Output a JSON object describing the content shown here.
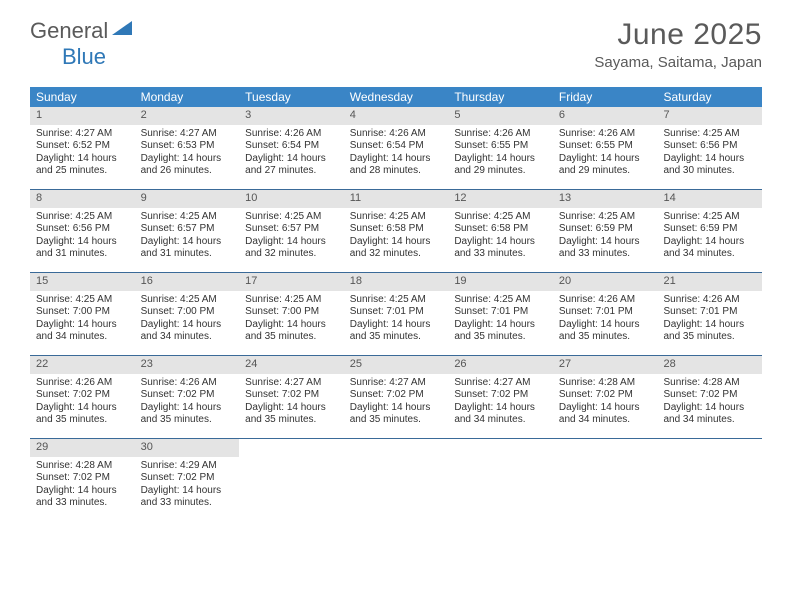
{
  "brand": {
    "part1": "General",
    "part2": "Blue"
  },
  "title": "June 2025",
  "location": "Sayama, Saitama, Japan",
  "colors": {
    "header_bg": "#3a85c6",
    "daynum_bg": "#e4e4e4",
    "rule": "#3a6a98",
    "brand_blue": "#2f78b7",
    "text": "#333333",
    "muted": "#5a5a5a"
  },
  "day_names": [
    "Sunday",
    "Monday",
    "Tuesday",
    "Wednesday",
    "Thursday",
    "Friday",
    "Saturday"
  ],
  "weeks": [
    [
      {
        "n": "1",
        "sunrise": "4:27 AM",
        "sunset": "6:52 PM",
        "daylight": "14 hours and 25 minutes."
      },
      {
        "n": "2",
        "sunrise": "4:27 AM",
        "sunset": "6:53 PM",
        "daylight": "14 hours and 26 minutes."
      },
      {
        "n": "3",
        "sunrise": "4:26 AM",
        "sunset": "6:54 PM",
        "daylight": "14 hours and 27 minutes."
      },
      {
        "n": "4",
        "sunrise": "4:26 AM",
        "sunset": "6:54 PM",
        "daylight": "14 hours and 28 minutes."
      },
      {
        "n": "5",
        "sunrise": "4:26 AM",
        "sunset": "6:55 PM",
        "daylight": "14 hours and 29 minutes."
      },
      {
        "n": "6",
        "sunrise": "4:26 AM",
        "sunset": "6:55 PM",
        "daylight": "14 hours and 29 minutes."
      },
      {
        "n": "7",
        "sunrise": "4:25 AM",
        "sunset": "6:56 PM",
        "daylight": "14 hours and 30 minutes."
      }
    ],
    [
      {
        "n": "8",
        "sunrise": "4:25 AM",
        "sunset": "6:56 PM",
        "daylight": "14 hours and 31 minutes."
      },
      {
        "n": "9",
        "sunrise": "4:25 AM",
        "sunset": "6:57 PM",
        "daylight": "14 hours and 31 minutes."
      },
      {
        "n": "10",
        "sunrise": "4:25 AM",
        "sunset": "6:57 PM",
        "daylight": "14 hours and 32 minutes."
      },
      {
        "n": "11",
        "sunrise": "4:25 AM",
        "sunset": "6:58 PM",
        "daylight": "14 hours and 32 minutes."
      },
      {
        "n": "12",
        "sunrise": "4:25 AM",
        "sunset": "6:58 PM",
        "daylight": "14 hours and 33 minutes."
      },
      {
        "n": "13",
        "sunrise": "4:25 AM",
        "sunset": "6:59 PM",
        "daylight": "14 hours and 33 minutes."
      },
      {
        "n": "14",
        "sunrise": "4:25 AM",
        "sunset": "6:59 PM",
        "daylight": "14 hours and 34 minutes."
      }
    ],
    [
      {
        "n": "15",
        "sunrise": "4:25 AM",
        "sunset": "7:00 PM",
        "daylight": "14 hours and 34 minutes."
      },
      {
        "n": "16",
        "sunrise": "4:25 AM",
        "sunset": "7:00 PM",
        "daylight": "14 hours and 34 minutes."
      },
      {
        "n": "17",
        "sunrise": "4:25 AM",
        "sunset": "7:00 PM",
        "daylight": "14 hours and 35 minutes."
      },
      {
        "n": "18",
        "sunrise": "4:25 AM",
        "sunset": "7:01 PM",
        "daylight": "14 hours and 35 minutes."
      },
      {
        "n": "19",
        "sunrise": "4:25 AM",
        "sunset": "7:01 PM",
        "daylight": "14 hours and 35 minutes."
      },
      {
        "n": "20",
        "sunrise": "4:26 AM",
        "sunset": "7:01 PM",
        "daylight": "14 hours and 35 minutes."
      },
      {
        "n": "21",
        "sunrise": "4:26 AM",
        "sunset": "7:01 PM",
        "daylight": "14 hours and 35 minutes."
      }
    ],
    [
      {
        "n": "22",
        "sunrise": "4:26 AM",
        "sunset": "7:02 PM",
        "daylight": "14 hours and 35 minutes."
      },
      {
        "n": "23",
        "sunrise": "4:26 AM",
        "sunset": "7:02 PM",
        "daylight": "14 hours and 35 minutes."
      },
      {
        "n": "24",
        "sunrise": "4:27 AM",
        "sunset": "7:02 PM",
        "daylight": "14 hours and 35 minutes."
      },
      {
        "n": "25",
        "sunrise": "4:27 AM",
        "sunset": "7:02 PM",
        "daylight": "14 hours and 35 minutes."
      },
      {
        "n": "26",
        "sunrise": "4:27 AM",
        "sunset": "7:02 PM",
        "daylight": "14 hours and 34 minutes."
      },
      {
        "n": "27",
        "sunrise": "4:28 AM",
        "sunset": "7:02 PM",
        "daylight": "14 hours and 34 minutes."
      },
      {
        "n": "28",
        "sunrise": "4:28 AM",
        "sunset": "7:02 PM",
        "daylight": "14 hours and 34 minutes."
      }
    ],
    [
      {
        "n": "29",
        "sunrise": "4:28 AM",
        "sunset": "7:02 PM",
        "daylight": "14 hours and 33 minutes."
      },
      {
        "n": "30",
        "sunrise": "4:29 AM",
        "sunset": "7:02 PM",
        "daylight": "14 hours and 33 minutes."
      },
      null,
      null,
      null,
      null,
      null
    ]
  ],
  "labels": {
    "sunrise": "Sunrise: ",
    "sunset": "Sunset: ",
    "daylight": "Daylight: "
  }
}
